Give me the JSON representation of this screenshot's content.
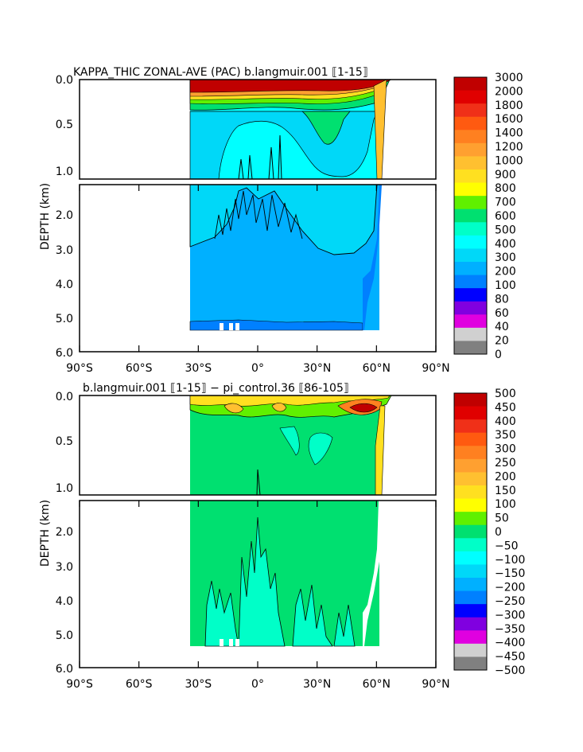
{
  "chart_data": [
    {
      "type": "heatmap",
      "title": "KAPPA_THIC ZONAL-AVE (PAC) b.langmuir.001 ⟦1-15⟧",
      "ylabel": "DEPTH (km)",
      "xlabel": "",
      "x_ticks": [
        "90°S",
        "60°S",
        "30°S",
        "0°",
        "30°N",
        "60°N",
        "90°N"
      ],
      "y_ticks_upper": [
        "0.0",
        "0.5",
        "1.0"
      ],
      "y_ticks_lower": [
        "2.0",
        "3.0",
        "4.0",
        "5.0",
        "6.0"
      ],
      "colorbar": {
        "labels": [
          "3000",
          "2000",
          "1800",
          "1600",
          "1400",
          "1200",
          "1000",
          "900",
          "800",
          "700",
          "600",
          "500",
          "400",
          "300",
          "200",
          "100",
          "80",
          "60",
          "40",
          "20",
          "0"
        ],
        "colors": [
          "#c00000",
          "#e00000",
          "#f03018",
          "#ff5a10",
          "#ff8020",
          "#ffa030",
          "#ffc030",
          "#ffe020",
          "#ffff00",
          "#60f000",
          "#00e070",
          "#00ffc8",
          "#00ffff",
          "#00d8f8",
          "#00b0ff",
          "#0080ff",
          "#0000ff",
          "#8000e0",
          "#e000e0",
          "#d0d0d0",
          "#808080"
        ]
      },
      "data_extent": {
        "lat": [
          -34,
          67
        ],
        "depth_km": [
          0,
          5.4
        ]
      }
    },
    {
      "type": "heatmap",
      "title": "b.langmuir.001 ⟦1-15⟧ − pi_control.36 ⟦86-105⟧",
      "ylabel": "DEPTH (km)",
      "xlabel": "",
      "x_ticks": [
        "90°S",
        "60°S",
        "30°S",
        "0°",
        "30°N",
        "60°N",
        "90°N"
      ],
      "y_ticks_upper": [
        "0.0",
        "0.5",
        "1.0"
      ],
      "y_ticks_lower": [
        "2.0",
        "3.0",
        "4.0",
        "5.0",
        "6.0"
      ],
      "colorbar": {
        "labels": [
          "500",
          "450",
          "400",
          "350",
          "300",
          "250",
          "200",
          "150",
          "100",
          "50",
          "0",
          "−50",
          "−100",
          "−150",
          "−200",
          "−250",
          "−300",
          "−350",
          "−400",
          "−450",
          "−500"
        ],
        "colors": [
          "#c00000",
          "#e00000",
          "#f03018",
          "#ff5a10",
          "#ff8020",
          "#ffa030",
          "#ffc030",
          "#ffe020",
          "#ffff00",
          "#60f000",
          "#00e070",
          "#00ffc8",
          "#00ffff",
          "#00d8f8",
          "#00b0ff",
          "#0080ff",
          "#0000ff",
          "#8000e0",
          "#e000e0",
          "#d0d0d0",
          "#808080"
        ]
      },
      "data_extent": {
        "lat": [
          -34,
          67
        ],
        "depth_km": [
          0,
          5.4
        ]
      }
    }
  ]
}
